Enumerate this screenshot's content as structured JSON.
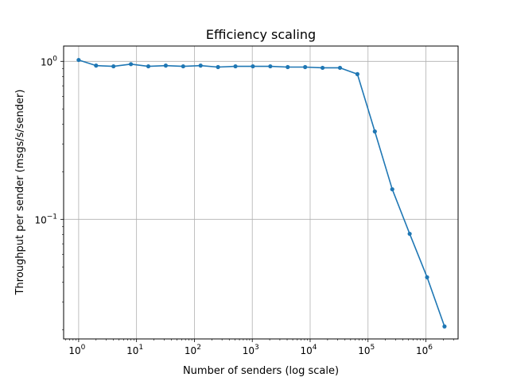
{
  "chart_data": {
    "type": "line",
    "title": "Efficiency scaling",
    "xlabel": "Number of senders (log scale)",
    "ylabel": "Throughput per sender (msgs/s/sender)",
    "xscale": "log",
    "yscale": "log",
    "xlim": [
      0.55,
      3600000
    ],
    "ylim": [
      0.0175,
      1.25
    ],
    "grid": true,
    "legend": "none",
    "x_ticks": [
      {
        "value": 1,
        "base": "10",
        "exp": "0"
      },
      {
        "value": 10,
        "base": "10",
        "exp": "1"
      },
      {
        "value": 100,
        "base": "10",
        "exp": "2"
      },
      {
        "value": 1000,
        "base": "10",
        "exp": "3"
      },
      {
        "value": 10000,
        "base": "10",
        "exp": "4"
      },
      {
        "value": 100000,
        "base": "10",
        "exp": "5"
      },
      {
        "value": 1000000,
        "base": "10",
        "exp": "6"
      }
    ],
    "y_ticks": [
      {
        "value": 0.1,
        "base": "10",
        "exp": "−1"
      },
      {
        "value": 1,
        "base": "10",
        "exp": "0"
      }
    ],
    "series": [
      {
        "color": "#1f77b4",
        "marker": "circle",
        "x": [
          1,
          2,
          4,
          8,
          16,
          32,
          64,
          128,
          256,
          512,
          1024,
          2048,
          4096,
          8192,
          16384,
          32768,
          65536,
          131072,
          262144,
          524288,
          1048576,
          2097152
        ],
        "y": [
          1.02,
          0.94,
          0.93,
          0.96,
          0.93,
          0.94,
          0.93,
          0.94,
          0.92,
          0.93,
          0.93,
          0.93,
          0.92,
          0.92,
          0.91,
          0.91,
          0.83,
          0.36,
          0.155,
          0.081,
          0.043,
          0.021
        ]
      }
    ]
  }
}
